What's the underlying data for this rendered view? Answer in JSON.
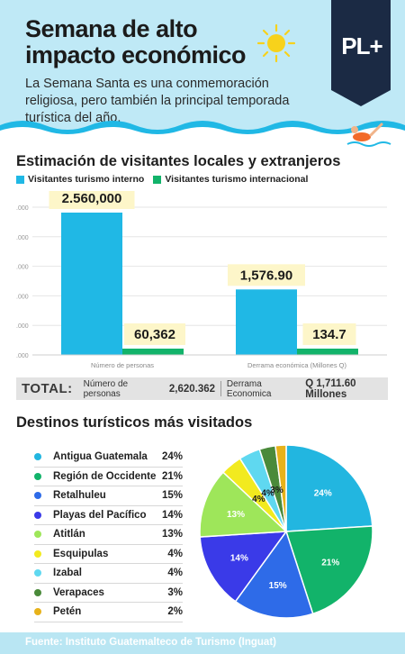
{
  "header": {
    "title_line1": "Semana de alto",
    "title_line2": "impacto económico",
    "subtitle": "La Semana Santa es una conmemoración religiosa, pero también la principal temporada turística del año.",
    "badge": "PL+",
    "colors": {
      "background": "#bfe9f6",
      "badge": "#1b2a44",
      "sun": "#f7d21b"
    }
  },
  "visitors": {
    "title": "Estimación de visitantes locales y extranjeros",
    "legend": [
      {
        "label": "Visitantes turismo interno",
        "color": "#20b8e5"
      },
      {
        "label": "Visitantes turismo internacional",
        "color": "#12b36a"
      }
    ]
  },
  "chart_data": [
    {
      "type": "bar",
      "title": "Estimación de visitantes locales y extranjeros",
      "categories": [
        "Número de personas",
        "Derrama económica (Millones Q)"
      ],
      "series": [
        {
          "name": "Visitantes turismo interno",
          "values": [
            2560000,
            1576.9
          ],
          "labels": [
            "2.560,000",
            "1,576.90"
          ],
          "color": "#20b8e5"
        },
        {
          "name": "Visitantes turismo internacional",
          "values": [
            60362,
            134.7
          ],
          "labels": [
            "60,362",
            "134.7"
          ],
          "color": "#12b36a"
        }
      ],
      "ytick_labels": [
        ".000",
        ".000",
        ".000",
        ".000",
        ".000",
        ".000"
      ],
      "grid": true
    },
    {
      "type": "pie",
      "title": "Destinos turísticos más visitados",
      "slices": [
        {
          "label": "Antigua Guatemala",
          "value": 24,
          "display": "24%",
          "color": "#22b6e0"
        },
        {
          "label": "Región de Occidente",
          "value": 21,
          "display": "21%",
          "color": "#12b36a"
        },
        {
          "label": "Retalhuleu",
          "value": 15,
          "display": "15%",
          "color": "#2e6be8"
        },
        {
          "label": "Playas del Pacífico",
          "value": 14,
          "display": "14%",
          "color": "#3a3ae8"
        },
        {
          "label": "Atitlán",
          "value": 13,
          "display": "13%",
          "color": "#9ee65a"
        },
        {
          "label": "Esquipulas",
          "value": 4,
          "display": "4%",
          "color": "#f2ea1f"
        },
        {
          "label": "Izabal",
          "value": 4,
          "display": "4%",
          "color": "#5fd8f0"
        },
        {
          "label": "Verapaces",
          "value": 3,
          "display": "3%",
          "color": "#4a8a3a"
        },
        {
          "label": "Petén",
          "value": 2,
          "display": "2%",
          "color": "#e7b21a"
        }
      ]
    }
  ],
  "total": {
    "label": "TOTAL:",
    "people_label": "Número de personas",
    "people_value": "2,620.362",
    "economic_label": "Derrama Economica",
    "economic_value": "Q 1,711.60 Millones"
  },
  "destinations": {
    "title": "Destinos turísticos más visitados"
  },
  "footer": {
    "source": "Fuente: Instituto Guatemalteco de Turismo (Inguat)"
  }
}
